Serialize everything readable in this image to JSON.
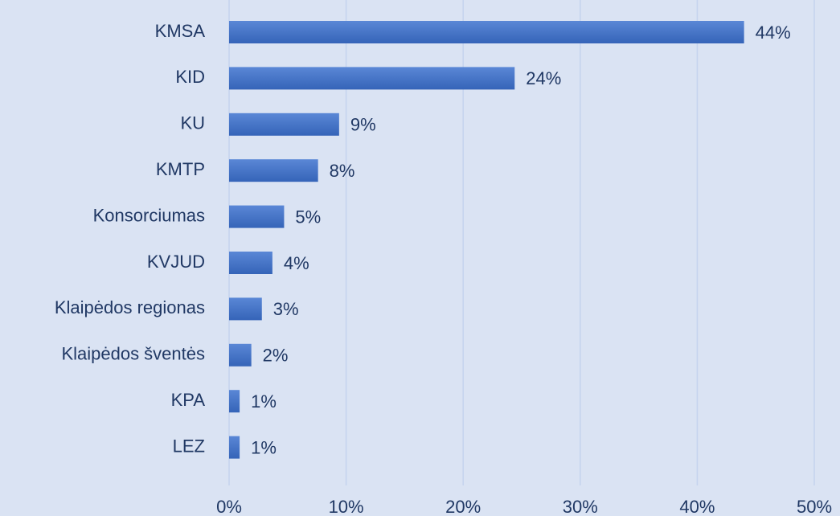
{
  "chart_data": {
    "type": "bar",
    "orientation": "horizontal",
    "categories": [
      "KMSA",
      "KID",
      "KU",
      "KMTP",
      "Konsorciumas",
      "KVJUD",
      "Klaipėdos regionas",
      "Klaipėdos šventės",
      "KPA",
      "LEZ"
    ],
    "values": [
      44,
      24.4,
      9.4,
      7.6,
      4.7,
      3.7,
      2.8,
      1.9,
      0.9,
      0.9
    ],
    "value_labels": [
      "44%",
      "24%",
      "9%",
      "8%",
      "5%",
      "4%",
      "3%",
      "2%",
      "1%",
      "1%"
    ],
    "color": "#4472c4",
    "xlim": [
      0,
      50
    ],
    "xticks": [
      {
        "value": 0,
        "label": "0%"
      },
      {
        "value": 10,
        "label": "10%"
      },
      {
        "value": 20,
        "label": "20%"
      },
      {
        "value": 30,
        "label": "30%"
      },
      {
        "value": 40,
        "label": "40%"
      },
      {
        "value": 50,
        "label": "50%"
      }
    ],
    "grid": true
  }
}
